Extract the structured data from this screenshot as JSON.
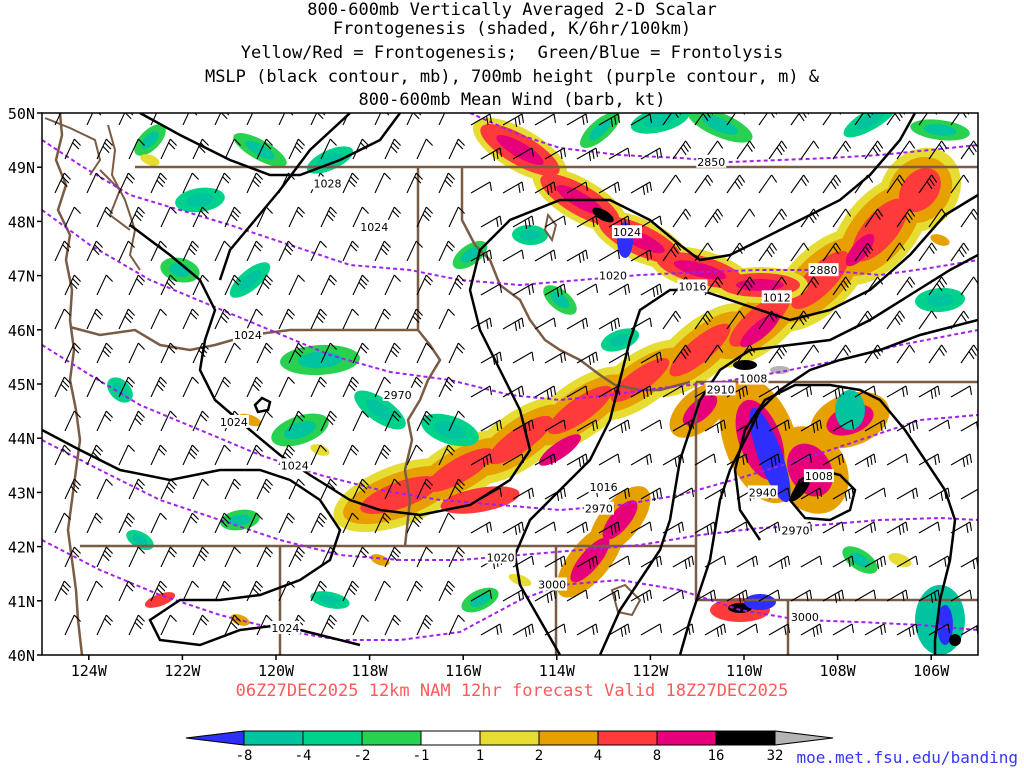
{
  "title_lines": [
    "800-600mb Vertically Averaged 2-D Scalar",
    "Frontogenesis (shaded, K/6hr/100km)",
    "Yellow/Red = Frontogenesis;  Green/Blue = Frontolysis",
    "MSLP (black contour, mb), 700mb height (purple contour, m) &",
    "800-600mb Mean Wind (barb, kt)"
  ],
  "subtitle": "06Z27DEC2025 12km NAM 12hr forecast Valid 18Z27DEC2025",
  "credit": "moe.met.fsu.edu/banding",
  "map": {
    "lon_range": [
      -125,
      -105
    ],
    "lat_range": [
      40,
      50
    ],
    "lat_ticks": [
      "40N",
      "41N",
      "42N",
      "43N",
      "44N",
      "45N",
      "46N",
      "47N",
      "48N",
      "49N",
      "50N"
    ],
    "lon_ticks": [
      "124W",
      "122W",
      "120W",
      "118W",
      "116W",
      "114W",
      "112W",
      "110W",
      "108W",
      "106W"
    ],
    "mslp_labels": [
      {
        "text": "1028",
        "lon": -118.9,
        "lat": 48.7
      },
      {
        "text": "1024",
        "lon": -117.9,
        "lat": 47.9
      },
      {
        "text": "1024",
        "lon": -120.6,
        "lat": 45.9
      },
      {
        "text": "1024",
        "lon": -120.9,
        "lat": 44.3
      },
      {
        "text": "1024",
        "lon": -119.6,
        "lat": 43.5
      },
      {
        "text": "1024",
        "lon": -119.8,
        "lat": 40.5
      },
      {
        "text": "1024",
        "lon": -112.5,
        "lat": 47.8
      },
      {
        "text": "1020",
        "lon": -112.8,
        "lat": 47.0
      },
      {
        "text": "1016",
        "lon": -111.1,
        "lat": 46.8
      },
      {
        "text": "1012",
        "lon": -109.3,
        "lat": 46.6
      },
      {
        "text": "1008",
        "lon": -109.8,
        "lat": 45.1
      },
      {
        "text": "1008",
        "lon": -108.4,
        "lat": 43.3
      },
      {
        "text": "1016",
        "lon": -113.0,
        "lat": 43.1
      },
      {
        "text": "1020",
        "lon": -115.2,
        "lat": 41.8
      }
    ],
    "height_labels": [
      {
        "text": "2850",
        "lon": -110.7,
        "lat": 49.1
      },
      {
        "text": "2880",
        "lon": -108.3,
        "lat": 47.1
      },
      {
        "text": "2970",
        "lon": -117.4,
        "lat": 44.8
      },
      {
        "text": "2970",
        "lon": -113.1,
        "lat": 42.7
      },
      {
        "text": "2910",
        "lon": -110.5,
        "lat": 44.9
      },
      {
        "text": "2940",
        "lon": -109.6,
        "lat": 43.0
      },
      {
        "text": "2970",
        "lon": -108.9,
        "lat": 42.3
      },
      {
        "text": "3000",
        "lon": -114.1,
        "lat": 41.3
      },
      {
        "text": "3000",
        "lon": -108.7,
        "lat": 40.7
      }
    ],
    "colors": {
      "mslp_contour": "#000000",
      "height_contour": "#a020f0",
      "border": "#7a5c44",
      "barb": "#000000"
    }
  },
  "colorbar": {
    "labels": [
      "-8",
      "-4",
      "-2",
      "-1",
      "1",
      "2",
      "4",
      "8",
      "16",
      "32"
    ],
    "colors": [
      "#2e2eff",
      "#00c3a0",
      "#00d28c",
      "#28d250",
      "#ffffff",
      "#e6dc32",
      "#e6a000",
      "#ff3a3a",
      "#e6007a",
      "#000000",
      "#b4b4b4"
    ]
  },
  "fronto_colors": {
    "neg": [
      "#28d250",
      "#00d28c",
      "#00c3a0",
      "#2e2eff"
    ],
    "pos": [
      "#e6dc32",
      "#e6a000",
      "#ff3a3a",
      "#e6007a",
      "#000000",
      "#b4b4b4"
    ]
  }
}
